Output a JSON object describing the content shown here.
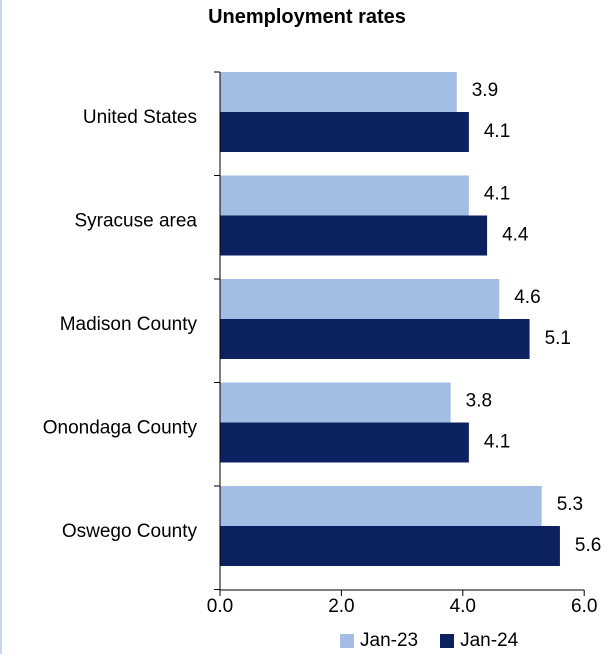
{
  "chart_data": {
    "type": "bar",
    "orientation": "horizontal",
    "title": "Unemployment rates",
    "categories": [
      "United States",
      "Syracuse area",
      "Madison County",
      "Onondaga County",
      "Oswego County"
    ],
    "series": [
      {
        "name": "Jan-23",
        "color": "#a3bde5",
        "values": [
          3.9,
          4.1,
          4.6,
          3.8,
          5.3
        ]
      },
      {
        "name": "Jan-24",
        "color": "#0b2160",
        "values": [
          4.1,
          4.4,
          5.1,
          4.1,
          5.6
        ]
      }
    ],
    "xlim": [
      0,
      6
    ],
    "xticks": [
      "0.0",
      "2.0",
      "4.0",
      "6.0"
    ],
    "value_labels": [
      "3.9",
      "4.1",
      "4.1",
      "4.4",
      "4.6",
      "5.1",
      "3.8",
      "4.1",
      "5.3",
      "5.6"
    ],
    "legend_position": "bottom-right",
    "grid": false
  }
}
